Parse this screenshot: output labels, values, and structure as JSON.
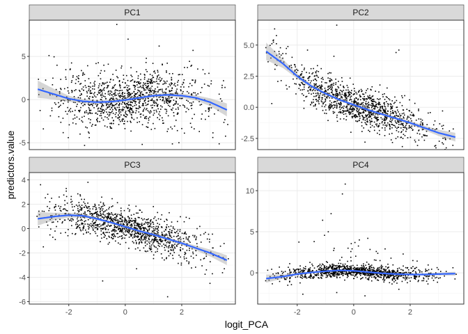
{
  "chart_data": {
    "type": "scatter",
    "facet_layout": "2x2",
    "xlabel": "logit_PCA",
    "ylabel": "predictors.value",
    "xlim": [
      -3.4,
      3.9
    ],
    "x_ticks": [
      -2,
      0,
      2
    ],
    "x_tick_labels": [
      "-2",
      "0",
      "2"
    ],
    "grid": true,
    "smooth": {
      "method": "loess",
      "color": "#3366ff",
      "ribbon_color": "#999999"
    },
    "point_color": "#000000",
    "panels": [
      {
        "title": "PC1",
        "ylim": [
          -5.8,
          9.2
        ],
        "y_ticks": [
          -5,
          0,
          5
        ],
        "y_tick_labels": [
          "-5",
          "0",
          "5"
        ],
        "smooth_x": [
          -3.1,
          -2.5,
          -2,
          -1.5,
          -1,
          -0.5,
          0,
          0.5,
          1,
          1.5,
          2,
          2.5,
          3,
          3.6
        ],
        "smooth_y": [
          1.2,
          0.6,
          0.1,
          -0.2,
          -0.3,
          -0.25,
          -0.05,
          0.2,
          0.45,
          0.55,
          0.45,
          0.2,
          -0.3,
          -1.2
        ],
        "smooth_se": [
          1.0,
          0.6,
          0.35,
          0.25,
          0.2,
          0.2,
          0.2,
          0.2,
          0.2,
          0.2,
          0.25,
          0.3,
          0.45,
          0.75
        ],
        "outliers": [
          [
            -0.3,
            8.7
          ],
          [
            0.1,
            7.0
          ],
          [
            1.2,
            6.2
          ],
          [
            2.4,
            5.7
          ],
          [
            1.9,
            -5.0
          ],
          [
            -2.7,
            5.1
          ],
          [
            -2.9,
            -3.4
          ],
          [
            0.6,
            -5.2
          ],
          [
            3.1,
            -4.4
          ],
          [
            -1.6,
            -4.0
          ]
        ]
      },
      {
        "title": "PC2",
        "ylim": [
          -3.4,
          7.0
        ],
        "y_ticks": [
          -2.5,
          0,
          2.5,
          5
        ],
        "y_tick_labels": [
          "-2.5",
          "0.0",
          "2.5",
          "5.0"
        ],
        "smooth_x": [
          -3.1,
          -2.5,
          -2,
          -1.5,
          -1,
          -0.5,
          0,
          0.5,
          1,
          1.5,
          2,
          2.5,
          3,
          3.6
        ],
        "smooth_y": [
          4.5,
          3.5,
          2.5,
          1.7,
          1.1,
          0.6,
          0.2,
          -0.2,
          -0.55,
          -0.9,
          -1.25,
          -1.65,
          -2.05,
          -2.4
        ],
        "smooth_se": [
          0.7,
          0.35,
          0.2,
          0.15,
          0.12,
          0.1,
          0.1,
          0.1,
          0.1,
          0.12,
          0.14,
          0.18,
          0.25,
          0.35
        ],
        "outliers": [
          [
            -2.8,
            6.3
          ],
          [
            -0.6,
            6.6
          ],
          [
            1.5,
            4.4
          ],
          [
            1.6,
            4.6
          ],
          [
            -2.9,
            0.3
          ],
          [
            0.4,
            -2.8
          ],
          [
            -0.7,
            4.1
          ]
        ]
      },
      {
        "title": "PC3",
        "ylim": [
          -6.2,
          4.6
        ],
        "y_ticks": [
          -6,
          -4,
          -2,
          0,
          2,
          4
        ],
        "y_tick_labels": [
          "-6",
          "-4",
          "-2",
          "0",
          "2",
          "4"
        ],
        "smooth_x": [
          -3.1,
          -2.5,
          -2,
          -1.5,
          -1,
          -0.5,
          0,
          0.5,
          1,
          1.5,
          2,
          2.5,
          3,
          3.6
        ],
        "smooth_y": [
          0.8,
          1.0,
          1.1,
          1.05,
          0.8,
          0.5,
          0.15,
          -0.2,
          -0.5,
          -0.85,
          -1.2,
          -1.6,
          -2.0,
          -2.6
        ],
        "smooth_se": [
          0.55,
          0.3,
          0.2,
          0.15,
          0.12,
          0.12,
          0.12,
          0.12,
          0.12,
          0.13,
          0.15,
          0.2,
          0.28,
          0.4
        ],
        "outliers": [
          [
            -3.0,
            3.6
          ],
          [
            1.5,
            -5.6
          ],
          [
            -0.8,
            -4.3
          ],
          [
            3.0,
            -4.5
          ],
          [
            -2.9,
            -1.5
          ],
          [
            0.4,
            -3.3
          ]
        ]
      },
      {
        "title": "PC4",
        "ylim": [
          -3.8,
          12.2
        ],
        "y_ticks": [
          0,
          5,
          10
        ],
        "y_tick_labels": [
          "0",
          "5",
          "10"
        ],
        "smooth_x": [
          -3.1,
          -2.5,
          -2,
          -1.5,
          -1,
          -0.5,
          0,
          0.5,
          1,
          1.5,
          2,
          2.5,
          3,
          3.6
        ],
        "smooth_y": [
          -0.7,
          -0.45,
          -0.15,
          0.05,
          0.2,
          0.3,
          0.25,
          0.1,
          -0.05,
          -0.15,
          -0.2,
          -0.2,
          -0.15,
          -0.1
        ],
        "smooth_se": [
          0.5,
          0.25,
          0.15,
          0.12,
          0.1,
          0.1,
          0.1,
          0.1,
          0.1,
          0.1,
          0.1,
          0.12,
          0.16,
          0.24
        ],
        "outliers": [
          [
            -0.3,
            10.8
          ],
          [
            -0.4,
            9.6
          ],
          [
            -0.8,
            7.2
          ],
          [
            -1.1,
            6.4
          ],
          [
            -0.9,
            5.0
          ],
          [
            0.2,
            4.0
          ],
          [
            0.5,
            4.2
          ],
          [
            -1.4,
            3.8
          ],
          [
            -0.2,
            3.0
          ],
          [
            0.8,
            2.6
          ],
          [
            -0.6,
            -2.4
          ],
          [
            0.4,
            -2.8
          ],
          [
            -1.8,
            -2.6
          ],
          [
            1.6,
            -2.0
          ]
        ]
      }
    ]
  }
}
